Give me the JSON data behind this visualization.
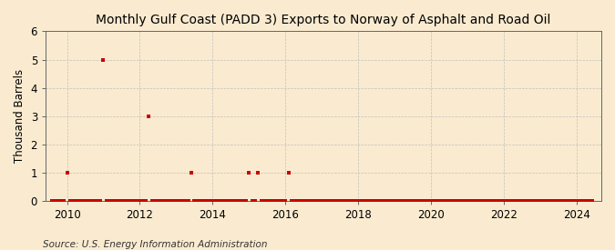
{
  "title": "Monthly Gulf Coast (PADD 3) Exports to Norway of Asphalt and Road Oil",
  "ylabel": "Thousand Barrels",
  "source": "Source: U.S. Energy Information Administration",
  "background_color": "#faebd0",
  "plot_background_color": "#faebd0",
  "marker_color": "#cc0000",
  "marker_size": 3,
  "ylim": [
    0,
    6
  ],
  "yticks": [
    0,
    1,
    2,
    3,
    4,
    5,
    6
  ],
  "xtick_years": [
    2010,
    2012,
    2014,
    2016,
    2018,
    2020,
    2022,
    2024
  ],
  "monthly_values": {
    "2009-08-01": 0,
    "2009-09-01": 0,
    "2009-10-01": 0,
    "2009-11-01": 0,
    "2009-12-01": 0,
    "2010-01-01": 1,
    "2010-02-01": 0,
    "2010-03-01": 0,
    "2010-04-01": 0,
    "2010-05-01": 0,
    "2010-06-01": 0,
    "2010-07-01": 0,
    "2010-08-01": 0,
    "2010-09-01": 0,
    "2010-10-01": 0,
    "2010-11-01": 0,
    "2010-12-01": 0,
    "2011-01-01": 5,
    "2011-02-01": 0,
    "2011-03-01": 0,
    "2011-04-01": 0,
    "2011-05-01": 0,
    "2011-06-01": 0,
    "2011-07-01": 0,
    "2011-08-01": 0,
    "2011-09-01": 0,
    "2011-10-01": 0,
    "2011-11-01": 0,
    "2011-12-01": 0,
    "2012-01-01": 0,
    "2012-02-01": 0,
    "2012-03-01": 0,
    "2012-04-01": 3,
    "2012-05-01": 0,
    "2012-06-01": 0,
    "2012-07-01": 0,
    "2012-08-01": 0,
    "2012-09-01": 0,
    "2012-10-01": 0,
    "2012-11-01": 0,
    "2012-12-01": 0,
    "2013-01-01": 0,
    "2013-02-01": 0,
    "2013-03-01": 0,
    "2013-04-01": 0,
    "2013-05-01": 0,
    "2013-06-01": 1,
    "2013-07-01": 0,
    "2013-08-01": 0,
    "2013-09-01": 0,
    "2013-10-01": 0,
    "2013-11-01": 0,
    "2013-12-01": 0,
    "2014-01-01": 0,
    "2014-02-01": 0,
    "2014-03-01": 0,
    "2014-04-01": 0,
    "2014-05-01": 0,
    "2014-06-01": 0,
    "2014-07-01": 0,
    "2014-08-01": 0,
    "2014-09-01": 0,
    "2014-10-01": 0,
    "2014-11-01": 0,
    "2014-12-01": 0,
    "2015-01-01": 1,
    "2015-02-01": 0,
    "2015-03-01": 0,
    "2015-04-01": 1,
    "2015-05-01": 0,
    "2015-06-01": 0,
    "2015-07-01": 0,
    "2015-08-01": 0,
    "2015-09-01": 0,
    "2015-10-01": 0,
    "2015-11-01": 0,
    "2015-12-01": 0,
    "2016-01-01": 0,
    "2016-02-01": 1,
    "2016-03-01": 0,
    "2016-04-01": 0,
    "2016-05-01": 0,
    "2016-06-01": 0,
    "2016-07-01": 0,
    "2016-08-01": 0,
    "2016-09-01": 0,
    "2016-10-01": 0,
    "2016-11-01": 0,
    "2016-12-01": 0,
    "2017-01-01": 0,
    "2017-02-01": 0,
    "2017-03-01": 0,
    "2017-04-01": 0,
    "2017-05-01": 0,
    "2017-06-01": 0,
    "2017-07-01": 0,
    "2017-08-01": 0,
    "2017-09-01": 0,
    "2017-10-01": 0,
    "2017-11-01": 0,
    "2017-12-01": 0,
    "2018-01-01": 0,
    "2018-02-01": 0,
    "2018-03-01": 0,
    "2018-04-01": 0,
    "2018-05-01": 0,
    "2018-06-01": 0,
    "2018-07-01": 0,
    "2018-08-01": 0,
    "2018-09-01": 0,
    "2018-10-01": 0,
    "2018-11-01": 0,
    "2018-12-01": 0,
    "2019-01-01": 0,
    "2019-02-01": 0,
    "2019-03-01": 0,
    "2019-04-01": 0,
    "2019-05-01": 0,
    "2019-06-01": 0,
    "2019-07-01": 0,
    "2019-08-01": 0,
    "2019-09-01": 0,
    "2019-10-01": 0,
    "2019-11-01": 0,
    "2019-12-01": 0,
    "2020-01-01": 0,
    "2020-02-01": 0,
    "2020-03-01": 0,
    "2020-04-01": 0,
    "2020-05-01": 0,
    "2020-06-01": 0,
    "2020-07-01": 0,
    "2020-08-01": 0,
    "2020-09-01": 0,
    "2020-10-01": 0,
    "2020-11-01": 0,
    "2020-12-01": 0,
    "2021-01-01": 0,
    "2021-02-01": 0,
    "2021-03-01": 0,
    "2021-04-01": 0,
    "2021-05-01": 0,
    "2021-06-01": 0,
    "2021-07-01": 0,
    "2021-08-01": 0,
    "2021-09-01": 0,
    "2021-10-01": 0,
    "2021-11-01": 0,
    "2021-12-01": 0,
    "2022-01-01": 0,
    "2022-02-01": 0,
    "2022-03-01": 0,
    "2022-04-01": 0,
    "2022-05-01": 0,
    "2022-06-01": 0,
    "2022-07-01": 0,
    "2022-08-01": 0,
    "2022-09-01": 0,
    "2022-10-01": 0,
    "2022-11-01": 0,
    "2022-12-01": 0,
    "2023-01-01": 0,
    "2023-02-01": 0,
    "2023-03-01": 0,
    "2023-04-01": 0,
    "2023-05-01": 0,
    "2023-06-01": 0,
    "2023-07-01": 0,
    "2023-08-01": 0,
    "2023-09-01": 0,
    "2023-10-01": 0,
    "2023-11-01": 0,
    "2023-12-01": 0,
    "2024-01-01": 0,
    "2024-02-01": 0,
    "2024-03-01": 0,
    "2024-04-01": 0,
    "2024-05-01": 0,
    "2024-06-01": 0
  },
  "title_fontsize": 10,
  "axis_fontsize": 8.5,
  "tick_fontsize": 8.5,
  "source_fontsize": 7.5
}
